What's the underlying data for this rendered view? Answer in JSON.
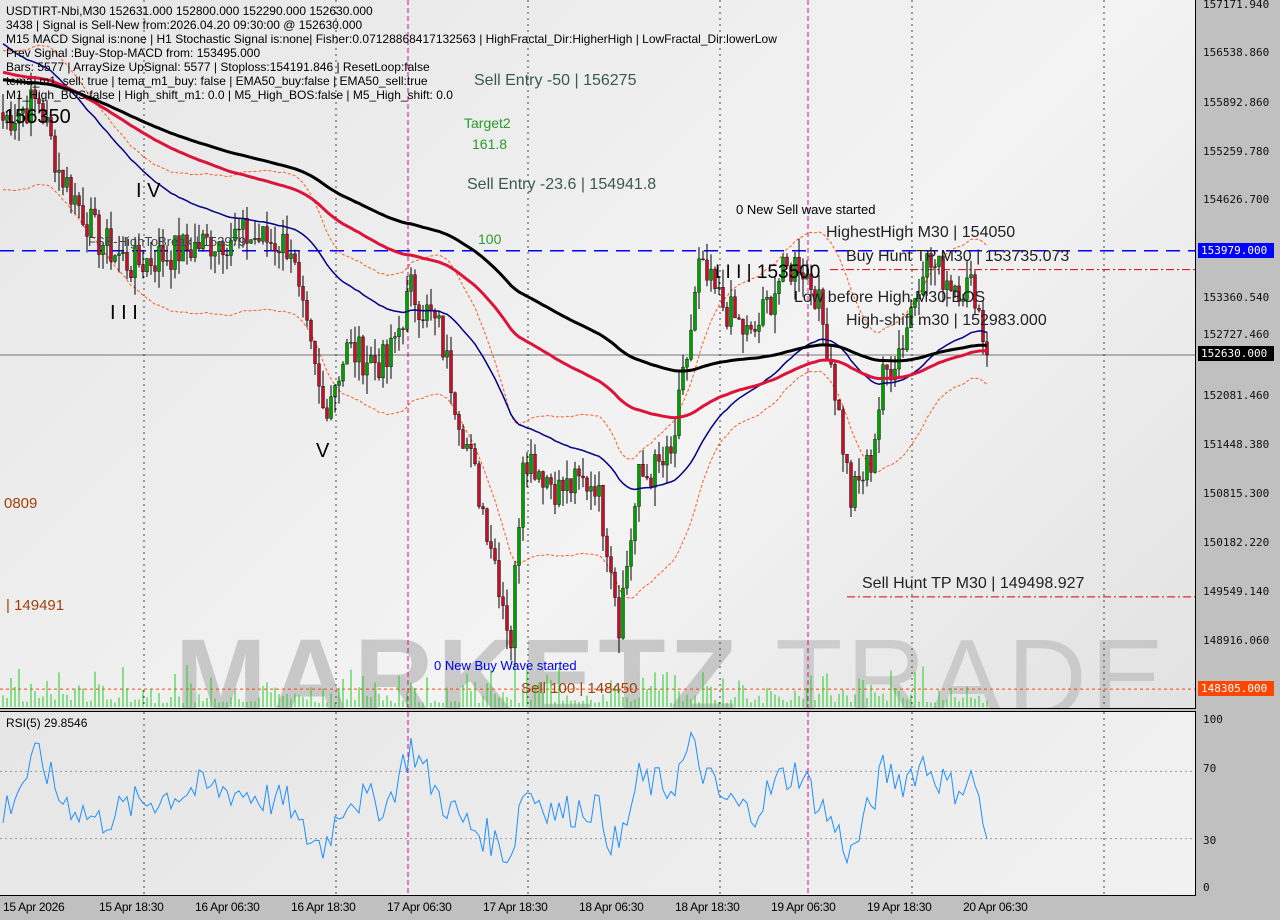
{
  "chart_data": {
    "type": "candlestick",
    "symbol_line": "USDTIRT-Nbi,M30  152631.000 152800.000 152290.000 152630.000",
    "info_lines": [
      "3438 | Signal is Sell-New from:2026.04.20 09:30:00 @ 152630.000",
      "M15 MACD Signal is:none | H1 Stochastic Signal is:none| Fisher:0.07128868417132563 | HighFractal_Dir:HigherHigh | LowFractal_Dir:lowerLow",
      "Prev Signal :Buy-Stop-MACD from: 153495.000",
      "Bars: 5577 | ArraySize UpSignal: 5577 | Stoploss:154191.846 | ResetLoop:false",
      "tema_m1_sell: true | tema_m1_buy: false | EMA50_buy:false | EMA50_sell:true",
      "M1_High_BOS:false | High_shift_m1: 0.0 | M5_High_BOS:false | M5_High_shift: 0.0"
    ],
    "ylim": [
      148305,
      157171.94
    ],
    "y_ticks": [
      "157171.940",
      "156538.860",
      "155892.860",
      "155259.780",
      "154626.700",
      "153360.540",
      "152727.460",
      "152081.460",
      "151448.380",
      "150815.300",
      "150182.220",
      "149549.140",
      "148916.060"
    ],
    "x_ticks": [
      "15 Apr 2026",
      "15 Apr 18:30",
      "16 Apr 06:30",
      "16 Apr 18:30",
      "17 Apr 06:30",
      "17 Apr 18:30",
      "18 Apr 06:30",
      "18 Apr 18:30",
      "19 Apr 06:30",
      "19 Apr 18:30",
      "20 Apr 06:30"
    ],
    "start_time": "2026-04-15T06:30:00Z",
    "time": [
      "2026-04-15T06:30:00Z",
      "2026-04-15T11:00:00Z",
      "2026-04-15T13:30:00Z",
      "2026-04-15T18:30:00Z",
      "2026-04-15T22:30:00Z",
      "2026-04-16T07:00:00Z",
      "2026-04-16T12:00:00Z",
      "2026-04-16T18:30:00Z",
      "2026-04-16T19:30:00Z",
      "2026-04-16T22:30:00Z",
      "2026-04-17T01:30:00Z",
      "2026-04-17T06:30:00Z",
      "2026-04-17T09:30:00Z",
      "2026-04-17T13:00:00Z",
      "2026-04-17T16:00:00Z",
      "2026-04-17T19:30:00Z",
      "2026-04-17T22:00:00Z",
      "2026-04-17T23:30:00Z",
      "2026-04-18T04:00:00Z",
      "2026-04-18T08:30:00Z",
      "2026-04-18T10:30:00Z",
      "2026-04-18T11:30:00Z",
      "2026-04-18T14:00:00Z",
      "2026-04-18T18:00:00Z",
      "2026-04-18T20:30:00Z",
      "2026-04-18T21:30:00Z",
      "2026-04-19T00:00:00Z",
      "2026-04-19T04:00:00Z",
      "2026-04-19T07:30:00Z",
      "2026-04-19T10:00:00Z",
      "2026-04-19T12:00:00Z",
      "2026-04-19T14:00:00Z",
      "2026-04-19T16:30:00Z",
      "2026-04-19T19:00:00Z",
      "2026-04-19T20:30:00Z",
      "2026-04-19T23:00:00Z",
      "2026-04-20T01:30:00Z",
      "2026-04-20T05:00:00Z",
      "2026-04-20T08:00:00Z",
      "2026-04-20T09:30:00Z"
    ],
    "close": [
      155672,
      155930,
      155024,
      154118,
      153794,
      154053,
      154183,
      154053,
      153341,
      151918,
      152694,
      152500,
      153471,
      152953,
      151659,
      150235,
      148940,
      151400,
      150882,
      151012,
      149976,
      149200,
      151012,
      151270,
      152953,
      153730,
      153341,
      152823,
      153600,
      153859,
      153471,
      152565,
      150753,
      151270,
      152306,
      152823,
      153859,
      153600,
      153471,
      152630
    ],
    "price_lines": [
      {
        "price": 153979,
        "label": "153979.000",
        "color": "#0000ff",
        "style": "dashed"
      },
      {
        "price": 152630,
        "label": "152630.000",
        "color": "#000000",
        "style": "solid"
      },
      {
        "price": 148305,
        "label": "148305.000",
        "color": "#ff4500",
        "style": "dotted"
      },
      {
        "price": 153735.073,
        "color": "#e00000",
        "style": "dashdot"
      },
      {
        "price": 149498.927,
        "color": "#e00000",
        "style": "dashdot"
      }
    ],
    "annotations": {
      "sell_entry_50": "Sell Entry -50 | 156275",
      "target2": "Target2",
      "target2_val": "161.8",
      "sell_entry_236": "Sell Entry -23.6 | 154941.8",
      "level_100": "100",
      "fib_high": "FSB-HighToBreak | 153979",
      "new_sell_wave": "0 New Sell wave started",
      "highest_high": "HighestHigh    M30 | 154050",
      "buy_hunt": "Buy Hunt TP M30 | 153735.073",
      "wave_iii_price": "I I I | 153500",
      "low_before_high": "Low before High   M30-BOS",
      "high_shift": "High-shift m30 | 152983.000",
      "sell_hunt": "Sell Hunt TP M30 | 149498.927",
      "new_buy_wave": "0 New Buy Wave started",
      "sell_100": "Sell 100 | 148450",
      "left_top": "156350",
      "left_0809": "0809",
      "left_149491": "| 149491",
      "wave_iv": "I V",
      "wave_iii": "I I I",
      "wave_v": "V"
    },
    "indicator_colors": {
      "ema_fast": "#000080",
      "ema_mid": "#dc143c",
      "ema_slow": "#000000",
      "up": "#00a000",
      "down": "#c0102a"
    },
    "rsi": {
      "label": "RSI(5) 29.8546",
      "ylim": [
        0,
        100
      ],
      "y_ticks": [
        "100",
        "70",
        "30",
        "0"
      ],
      "levels": [
        70,
        30
      ],
      "values": [
        45,
        80,
        55,
        40,
        50,
        60,
        58,
        50,
        35,
        25,
        55,
        50,
        85,
        55,
        40,
        30,
        20,
        60,
        45,
        50,
        30,
        25,
        65,
        60,
        85,
        75,
        55,
        45,
        65,
        70,
        55,
        40,
        20,
        50,
        70,
        65,
        75,
        60,
        65,
        30
      ],
      "color": "#1e90ff"
    }
  },
  "watermark": "MARKETZ TRADE"
}
